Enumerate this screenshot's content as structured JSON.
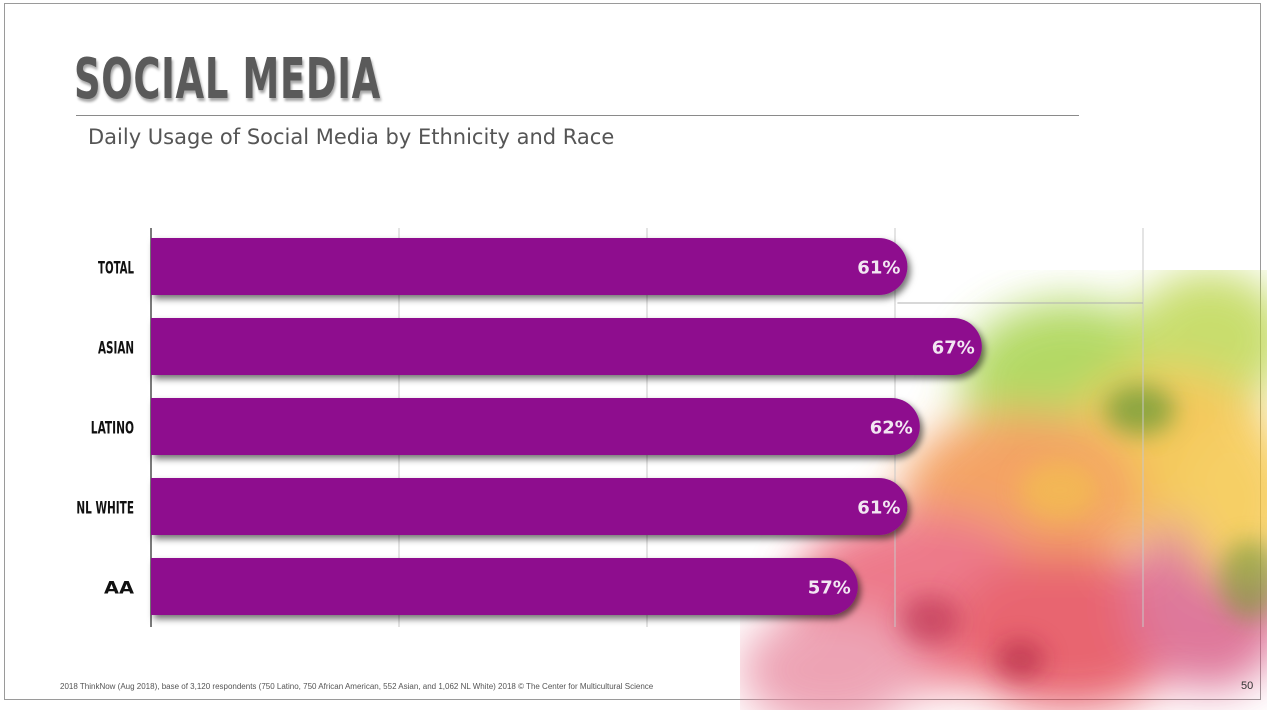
{
  "slide": {
    "title": "SOCIAL MEDIA",
    "subtitle": "Daily Usage of Social Media by Ethnicity and Race",
    "footnote": "2018 ThinkNow (Aug 2018), base of 3,120 respondents (750 Latino, 750 African American, 552 Asian, and 1,062 NL White)     2018 © The Center for Multicultural Science",
    "page_number": "50",
    "title_color": "#5a5a5a"
  },
  "chart_data": {
    "type": "bar",
    "orientation": "horizontal",
    "categories": [
      "TOTAL",
      "ASIAN",
      "LATINO",
      "NL WHITE",
      "AA"
    ],
    "values": [
      61,
      67,
      62,
      61,
      57
    ],
    "value_labels": [
      "61%",
      "67%",
      "62%",
      "61%",
      "57%"
    ],
    "title": "Daily Usage of Social Media by Ethnicity and Race",
    "xlim": [
      0,
      80
    ],
    "grid": true,
    "bar_color": "#8e0c8e",
    "label_color": "#f2e6f2"
  }
}
